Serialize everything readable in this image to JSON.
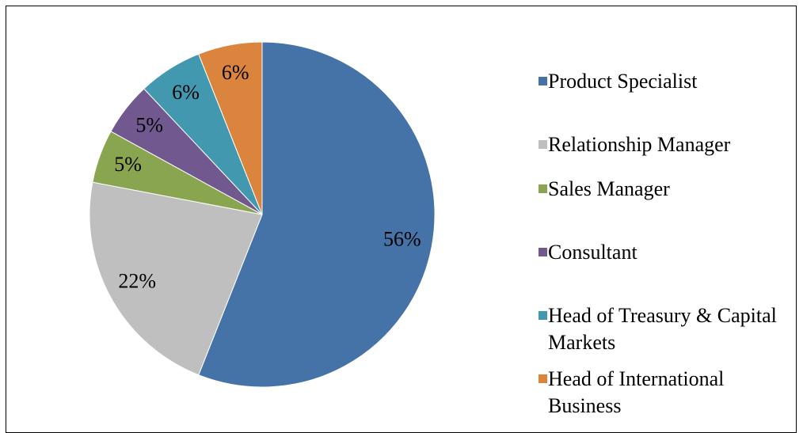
{
  "chart_data": {
    "type": "pie",
    "categories": [
      "Product Specialist",
      "Relationship Manager",
      "Sales Manager",
      "Consultant",
      "Head of Treasury & Capital Markets",
      "Head of International Business"
    ],
    "values": [
      56,
      22,
      5,
      5,
      6,
      6
    ],
    "value_labels": [
      "56%",
      "22%",
      "5%",
      "5%",
      "6%",
      "6%"
    ],
    "colors": [
      "#4572a7",
      "#bfbfbf",
      "#8aa54f",
      "#71588f",
      "#4198af",
      "#db843d"
    ],
    "legend": "right"
  }
}
